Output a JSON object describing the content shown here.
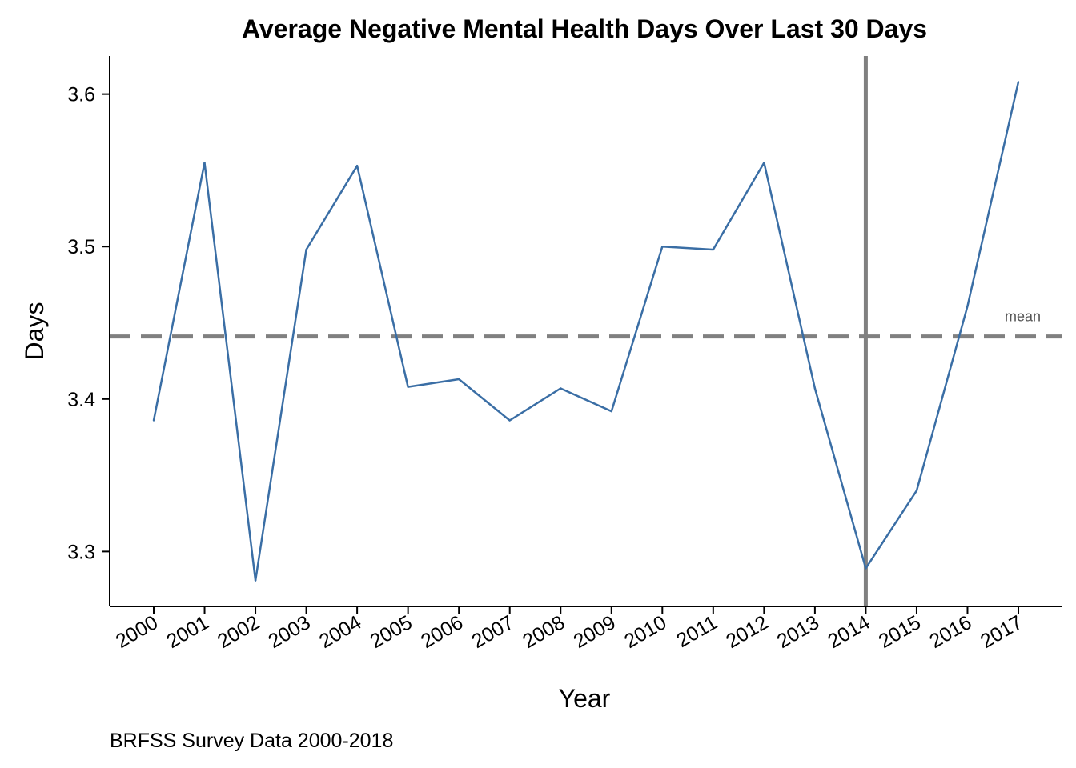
{
  "chart_data": {
    "type": "line",
    "title": "Average Negative Mental Health Days Over Last 30 Days",
    "xlabel": "Year",
    "ylabel": "Days",
    "caption": "BRFSS Survey Data 2000-2018",
    "x": [
      "2000",
      "2001",
      "2002",
      "2003",
      "2004",
      "2005",
      "2006",
      "2007",
      "2008",
      "2009",
      "2010",
      "2011",
      "2012",
      "2013",
      "2014",
      "2015",
      "2016",
      "2017"
    ],
    "series": [
      {
        "values": [
          3.386,
          3.555,
          3.281,
          3.498,
          3.553,
          3.408,
          3.413,
          3.386,
          3.407,
          3.392,
          3.5,
          3.498,
          3.555,
          3.407,
          3.289,
          3.34,
          3.461,
          3.608
        ],
        "color": "#3a6ea5"
      }
    ],
    "ylim": [
      3.264,
      3.625
    ],
    "yticks": [
      3.3,
      3.4,
      3.5,
      3.6
    ],
    "ytick_labels": [
      "3.3",
      "3.4",
      "3.5",
      "3.6"
    ],
    "hline": {
      "value": 3.441,
      "label": "mean",
      "color": "#808080",
      "style": "dashed"
    },
    "vline": {
      "x": "2014",
      "color": "#808080"
    },
    "grid": false,
    "legend": "none"
  }
}
